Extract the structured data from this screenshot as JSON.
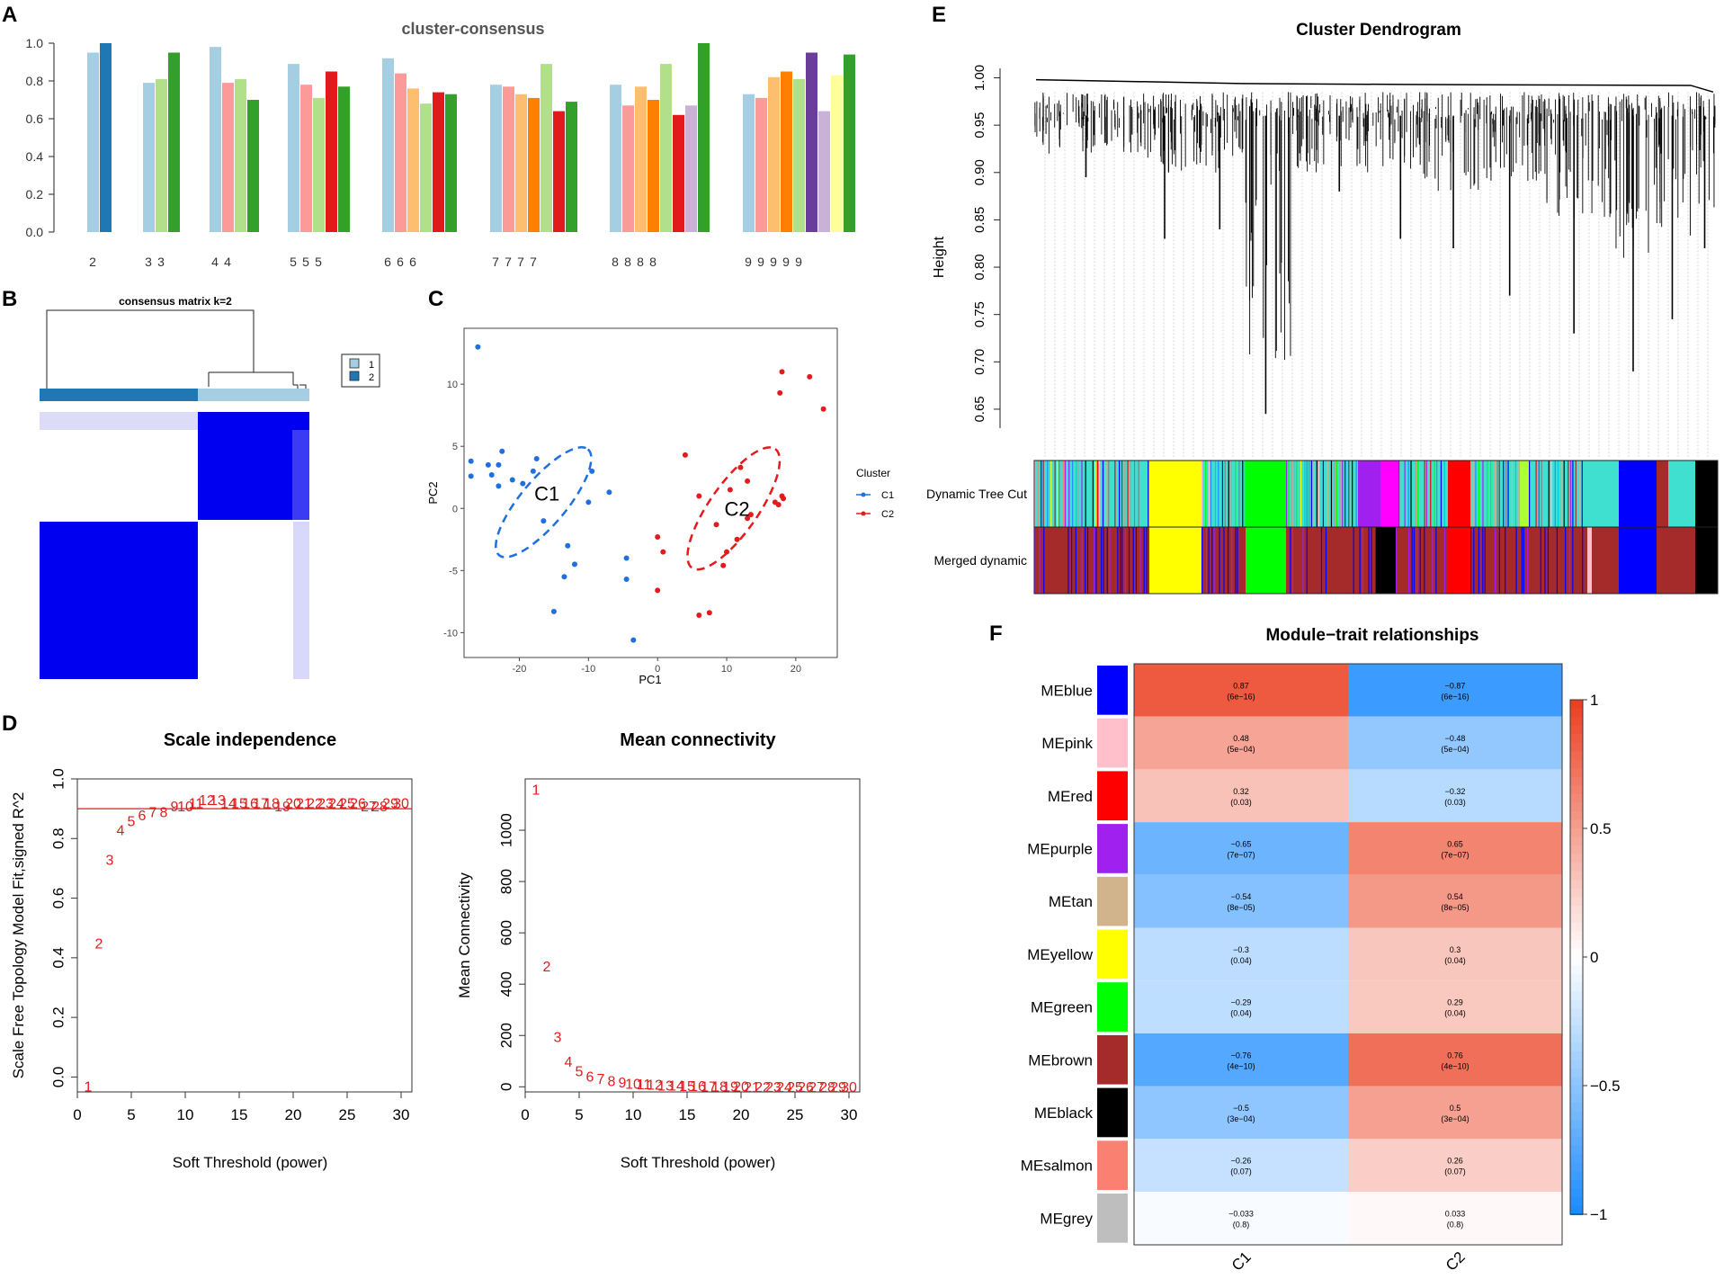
{
  "panels": {
    "a": "A",
    "b": "B",
    "c": "C",
    "d": "D",
    "e": "E",
    "f": "F"
  },
  "colors": {
    "c1": "#a6cee3",
    "c2": "#1f78b4",
    "c3": "#b2df8a",
    "c4": "#33a02c",
    "c5": "#fb9a99",
    "c6": "#e31a1c",
    "c7": "#fdbf6f",
    "c8": "#ff7f00",
    "c9": "#cab2d6",
    "c10": "#6a3d9a",
    "c11": "#ffff99",
    "pcaC1": "#1f6fe0",
    "pcaC2": "#e41a1c",
    "red": "#e41a1c"
  },
  "chart_data": [
    {
      "id": "A",
      "type": "bar",
      "title": "cluster-consensus",
      "ylim": [
        0,
        1.0
      ],
      "yticks": [
        "0.0",
        "0.2",
        "0.4",
        "0.6",
        "0.8",
        "1.0"
      ],
      "groups": [
        {
          "k": "2",
          "labels": [
            "2",
            ""
          ],
          "values": [
            0.95,
            1.0
          ],
          "colors": [
            "c1",
            "c2"
          ]
        },
        {
          "k": "3",
          "labels": [
            "3",
            "3",
            ""
          ],
          "values": [
            0.79,
            0.81,
            0.95
          ],
          "colors": [
            "c1",
            "c3",
            "c4"
          ]
        },
        {
          "k": "4",
          "labels": [
            "4",
            "4",
            "",
            ""
          ],
          "values": [
            0.98,
            0.79,
            0.81,
            0.7
          ],
          "colors": [
            "c1",
            "c5",
            "c3",
            "c4"
          ]
        },
        {
          "k": "5",
          "labels": [
            "5",
            "5",
            "5",
            "",
            ""
          ],
          "values": [
            0.89,
            0.78,
            0.71,
            0.85,
            0.77
          ],
          "colors": [
            "c1",
            "c5",
            "c3",
            "c6",
            "c4"
          ]
        },
        {
          "k": "6",
          "labels": [
            "6",
            "6",
            "6",
            "",
            "",
            ""
          ],
          "values": [
            0.92,
            0.84,
            0.76,
            0.68,
            0.74,
            0.73
          ],
          "colors": [
            "c1",
            "c5",
            "c7",
            "c3",
            "c6",
            "c4"
          ]
        },
        {
          "k": "7",
          "labels": [
            "7",
            "7",
            "7",
            "7",
            "",
            "",
            ""
          ],
          "values": [
            0.78,
            0.77,
            0.73,
            0.71,
            0.89,
            0.64,
            0.69
          ],
          "colors": [
            "c1",
            "c5",
            "c7",
            "c8",
            "c3",
            "c6",
            "c4"
          ]
        },
        {
          "k": "8",
          "labels": [
            "8",
            "8",
            "8",
            "8",
            "",
            "",
            "",
            ""
          ],
          "values": [
            0.78,
            0.67,
            0.77,
            0.7,
            0.89,
            0.62,
            0.67,
            1.0
          ],
          "colors": [
            "c1",
            "c5",
            "c7",
            "c8",
            "c3",
            "c6",
            "c9",
            "c4"
          ]
        },
        {
          "k": "9",
          "labels": [
            "9",
            "9",
            "9",
            "9",
            "9",
            "",
            "",
            "",
            ""
          ],
          "values": [
            0.73,
            0.71,
            0.82,
            0.85,
            0.81,
            0.95,
            0.64,
            0.83,
            0.94
          ],
          "colors": [
            "c1",
            "c5",
            "c7",
            "c8",
            "c3",
            "c10",
            "c9",
            "c11",
            "c4"
          ]
        }
      ]
    },
    {
      "id": "B",
      "type": "heatmap",
      "title": "consensus matrix k=2",
      "legend": [
        "1",
        "2"
      ],
      "legend_colors": [
        "#a6cee3",
        "#1f78b4"
      ]
    },
    {
      "id": "C",
      "type": "scatter",
      "xlabel": "PC1",
      "ylabel": "PC2",
      "xlim": [
        -28,
        26
      ],
      "ylim": [
        -12,
        14.5
      ],
      "xticks": [
        -20,
        -10,
        0,
        10,
        20
      ],
      "yticks": [
        -10,
        -5,
        0,
        5,
        10
      ],
      "legend_title": "Cluster",
      "series": [
        {
          "name": "C1",
          "color": "pcaC1",
          "label": "C1",
          "label_pos": [
            -16,
            1.2
          ],
          "ellipse": {
            "cx": -16.5,
            "cy": 0.5,
            "rx": 10,
            "ry": 3.3,
            "angle": -50
          },
          "points": [
            [
              -26,
              13
            ],
            [
              -27,
              3.8
            ],
            [
              -27,
              2.6
            ],
            [
              -24.5,
              3.5
            ],
            [
              -24,
              2.7
            ],
            [
              -23,
              3.5
            ],
            [
              -23,
              1.8
            ],
            [
              -22.5,
              4.6
            ],
            [
              -21,
              2.3
            ],
            [
              -19.5,
              2
            ],
            [
              -18,
              3
            ],
            [
              -17.5,
              4
            ],
            [
              -16.5,
              -1
            ],
            [
              -15,
              -8.3
            ],
            [
              -13,
              -3
            ],
            [
              -12,
              -4.5
            ],
            [
              -13.5,
              -5.5
            ],
            [
              -10,
              0.5
            ],
            [
              -9.5,
              3
            ],
            [
              -7,
              1.3
            ],
            [
              -4.5,
              -4
            ],
            [
              -4.5,
              -5.7
            ],
            [
              -3.5,
              -10.6
            ]
          ]
        },
        {
          "name": "C2",
          "color": "pcaC2",
          "label": "C2",
          "label_pos": [
            11.5,
            0.0
          ],
          "ellipse": {
            "cx": 11,
            "cy": 0,
            "rx": 10.5,
            "ry": 3.5,
            "angle": -55
          },
          "points": [
            [
              0,
              -2.3
            ],
            [
              0.8,
              -3.5
            ],
            [
              0,
              -6.6
            ],
            [
              4,
              4.3
            ],
            [
              6,
              -8.6
            ],
            [
              7.5,
              -8.4
            ],
            [
              6,
              1
            ],
            [
              8.5,
              -1.3
            ],
            [
              9.5,
              -4.6
            ],
            [
              10,
              -3.5
            ],
            [
              10.5,
              1.5
            ],
            [
              11.5,
              -2.5
            ],
            [
              12,
              3.3
            ],
            [
              13,
              2.2
            ],
            [
              13,
              -0.8
            ],
            [
              13.5,
              -0.5
            ],
            [
              17,
              0.5
            ],
            [
              17.5,
              0.3
            ],
            [
              18,
              1
            ],
            [
              18.2,
              0.8
            ],
            [
              17.7,
              9.3
            ],
            [
              18,
              11
            ],
            [
              22,
              10.6
            ],
            [
              24,
              8
            ]
          ]
        }
      ]
    },
    {
      "id": "D1",
      "type": "scatter",
      "title": "Scale independence",
      "xlabel": "Soft Threshold (power)",
      "ylabel": "Scale Free Topology Model Fit,signed R^2",
      "xlim": [
        0,
        31
      ],
      "ylim": [
        -0.05,
        1.0
      ],
      "xticks": [
        0,
        5,
        10,
        15,
        20,
        25,
        30
      ],
      "yticks": [
        "0.0",
        "0.2",
        "0.4",
        "0.6",
        "0.8",
        "1.0"
      ],
      "hline": 0.9,
      "powers": [
        1,
        2,
        3,
        4,
        5,
        6,
        7,
        8,
        9,
        10,
        11,
        12,
        13,
        14,
        15,
        16,
        17,
        18,
        19,
        20,
        21,
        22,
        23,
        24,
        25,
        26,
        27,
        28,
        29,
        30
      ],
      "values": [
        -0.03,
        0.45,
        0.73,
        0.83,
        0.86,
        0.88,
        0.89,
        0.89,
        0.91,
        0.91,
        0.92,
        0.93,
        0.93,
        0.92,
        0.92,
        0.92,
        0.92,
        0.92,
        0.91,
        0.92,
        0.92,
        0.92,
        0.92,
        0.92,
        0.92,
        0.92,
        0.91,
        0.91,
        0.92,
        0.92
      ]
    },
    {
      "id": "D2",
      "type": "scatter",
      "title": "Mean connectivity",
      "xlabel": "Soft Threshold (power)",
      "ylabel": "Mean Connectivity",
      "xlim": [
        0,
        31
      ],
      "ylim": [
        -20,
        1200
      ],
      "xticks": [
        0,
        5,
        10,
        15,
        20,
        25,
        30
      ],
      "yticks": [
        0,
        200,
        400,
        600,
        800,
        1000
      ],
      "powers": [
        1,
        2,
        3,
        4,
        5,
        6,
        7,
        8,
        9,
        10,
        11,
        12,
        13,
        14,
        15,
        16,
        17,
        18,
        19,
        20,
        21,
        22,
        23,
        24,
        25,
        26,
        27,
        28,
        29,
        30
      ],
      "values": [
        1160,
        470,
        195,
        100,
        62,
        42,
        32,
        24,
        18,
        14,
        11,
        9,
        7,
        6,
        5,
        4,
        3.5,
        3,
        2.5,
        2,
        1.8,
        1.6,
        1.4,
        1.2,
        1,
        0.9,
        0.8,
        0.7,
        0.6,
        0.5
      ]
    },
    {
      "id": "E",
      "type": "dendrogram",
      "title": "Cluster Dendrogram",
      "ylabel": "Height",
      "ylim": [
        0.63,
        1.01
      ],
      "yticks": [
        "0.65",
        "0.70",
        "0.75",
        "0.80",
        "0.85",
        "0.90",
        "0.95",
        "1.00"
      ],
      "rows": [
        "Dynamic Tree Cut",
        "Merged dynamic"
      ]
    },
    {
      "id": "F",
      "type": "heatmap",
      "title": "Module−trait relationships",
      "columns": [
        "C1",
        "C2"
      ],
      "colorbar_ticks": [
        "1",
        "0.5",
        "0",
        "−0.5",
        "−1"
      ],
      "rows": [
        {
          "name": "MEblue",
          "color": "#0000ff",
          "r": [
            "0.87",
            "−0.87"
          ],
          "p": [
            "(6e−16)",
            "(6e−16)"
          ],
          "v": [
            0.87,
            -0.87
          ]
        },
        {
          "name": "MEpink",
          "color": "#ffc0cb",
          "r": [
            "0.48",
            "−0.48"
          ],
          "p": [
            "(5e−04)",
            "(5e−04)"
          ],
          "v": [
            0.48,
            -0.48
          ]
        },
        {
          "name": "MEred",
          "color": "#ff0000",
          "r": [
            "0.32",
            "−0.32"
          ],
          "p": [
            "(0.03)",
            "(0.03)"
          ],
          "v": [
            0.32,
            -0.32
          ]
        },
        {
          "name": "MEpurple",
          "color": "#a020f0",
          "r": [
            "−0.65",
            "0.65"
          ],
          "p": [
            "(7e−07)",
            "(7e−07)"
          ],
          "v": [
            -0.65,
            0.65
          ]
        },
        {
          "name": "MEtan",
          "color": "#d2b48c",
          "r": [
            "−0.54",
            "0.54"
          ],
          "p": [
            "(8e−05)",
            "(8e−05)"
          ],
          "v": [
            -0.54,
            0.54
          ]
        },
        {
          "name": "MEyellow",
          "color": "#ffff00",
          "r": [
            "−0.3",
            "0.3"
          ],
          "p": [
            "(0.04)",
            "(0.04)"
          ],
          "v": [
            -0.3,
            0.3
          ]
        },
        {
          "name": "MEgreen",
          "color": "#00ff00",
          "r": [
            "−0.29",
            "0.29"
          ],
          "p": [
            "(0.04)",
            "(0.04)"
          ],
          "v": [
            -0.29,
            0.29
          ]
        },
        {
          "name": "MEbrown",
          "color": "#a52a2a",
          "r": [
            "−0.76",
            "0.76"
          ],
          "p": [
            "(4e−10)",
            "(4e−10)"
          ],
          "v": [
            -0.76,
            0.76
          ]
        },
        {
          "name": "MEblack",
          "color": "#000000",
          "r": [
            "−0.5",
            "0.5"
          ],
          "p": [
            "(3e−04)",
            "(3e−04)"
          ],
          "v": [
            -0.5,
            0.5
          ]
        },
        {
          "name": "MEsalmon",
          "color": "#fa8072",
          "r": [
            "−0.26",
            "0.26"
          ],
          "p": [
            "(0.07)",
            "(0.07)"
          ],
          "v": [
            -0.26,
            0.26
          ]
        },
        {
          "name": "MEgrey",
          "color": "#bebebe",
          "r": [
            "−0.033",
            "0.033"
          ],
          "p": [
            "(0.8)",
            "(0.8)"
          ],
          "v": [
            -0.033,
            0.033
          ]
        }
      ]
    }
  ]
}
